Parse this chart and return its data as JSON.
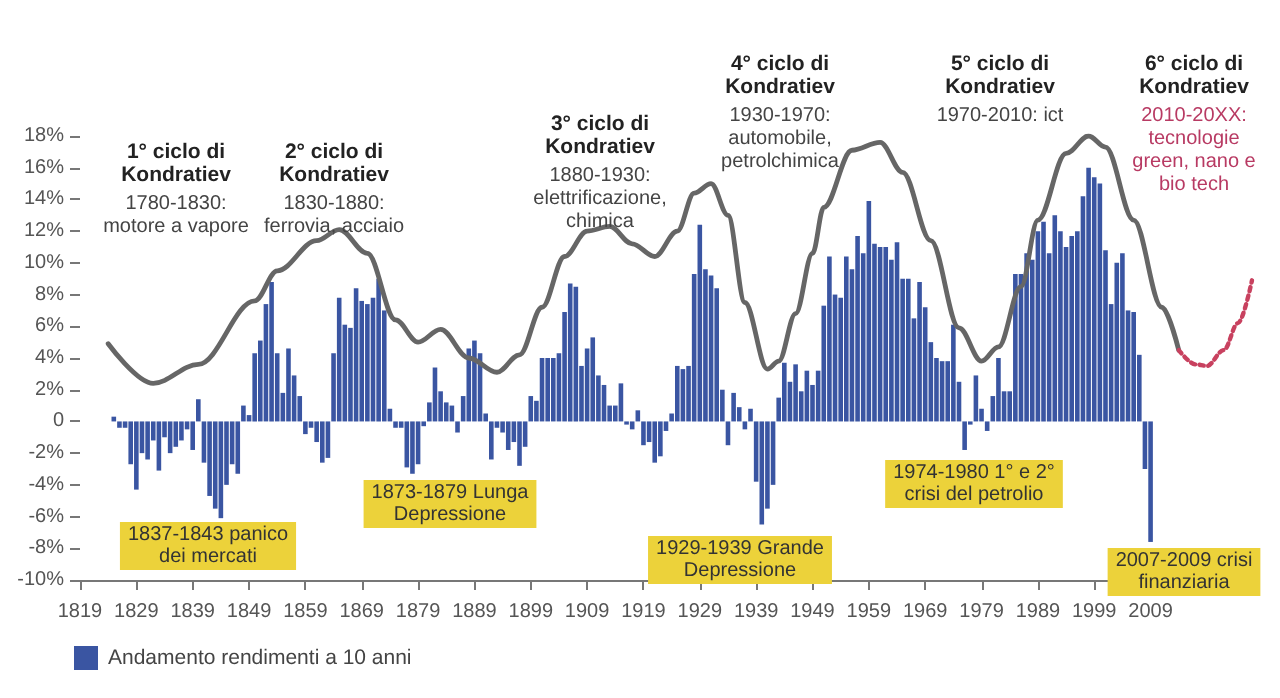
{
  "chart_data": {
    "type": "bar",
    "xlim": [
      1819,
      2027
    ],
    "xticks": [
      1819,
      1829,
      1839,
      1849,
      1859,
      1869,
      1879,
      1889,
      1899,
      1909,
      1919,
      1929,
      1939,
      1949,
      1959,
      1969,
      1979,
      1989,
      1999,
      2009
    ],
    "ylim": [
      -10,
      18
    ],
    "yticks": [
      {
        "value": -10,
        "label": "-10%"
      },
      {
        "value": -8,
        "label": "-8%"
      },
      {
        "value": -6,
        "label": "-6%"
      },
      {
        "value": -4,
        "label": "-4%"
      },
      {
        "value": -2,
        "label": "-2%"
      },
      0,
      {
        "value": 2,
        "label": "2%"
      },
      {
        "value": 4,
        "label": "4%"
      },
      {
        "value": 6,
        "label": "6%"
      },
      {
        "value": 8,
        "label": "8%"
      },
      {
        "value": 10,
        "label": "10%"
      },
      {
        "value": 12,
        "label": "12%"
      },
      {
        "value": 14,
        "label": "14%"
      },
      {
        "value": 16,
        "label": "16%"
      },
      {
        "value": 18,
        "label": "18%"
      }
    ],
    "legend": "bottom left",
    "marker": "none",
    "series": [
      {
        "name": "Andamento rendimenti a 10 anni",
        "color": "#3a55a2",
        "x": [
          1825,
          1826,
          1827,
          1828,
          1829,
          1830,
          1831,
          1832,
          1833,
          1834,
          1835,
          1836,
          1837,
          1838,
          1839,
          1840,
          1841,
          1842,
          1843,
          1844,
          1845,
          1846,
          1847,
          1848,
          1849,
          1850,
          1851,
          1852,
          1853,
          1854,
          1855,
          1856,
          1857,
          1858,
          1859,
          1860,
          1861,
          1862,
          1863,
          1864,
          1865,
          1866,
          1867,
          1868,
          1869,
          1870,
          1871,
          1872,
          1873,
          1874,
          1875,
          1876,
          1877,
          1878,
          1879,
          1880,
          1881,
          1882,
          1883,
          1884,
          1885,
          1886,
          1887,
          1888,
          1889,
          1890,
          1891,
          1892,
          1893,
          1894,
          1895,
          1896,
          1897,
          1898,
          1899,
          1900,
          1901,
          1902,
          1903,
          1904,
          1905,
          1906,
          1907,
          1908,
          1909,
          1910,
          1911,
          1912,
          1913,
          1914,
          1915,
          1916,
          1917,
          1918,
          1919,
          1920,
          1921,
          1922,
          1923,
          1924,
          1925,
          1926,
          1927,
          1928,
          1929,
          1930,
          1931,
          1932,
          1933,
          1934,
          1935,
          1936,
          1937,
          1938,
          1939,
          1940,
          1941,
          1942,
          1943,
          1944,
          1945,
          1946,
          1947,
          1948,
          1949,
          1950,
          1951,
          1952,
          1953,
          1954,
          1955,
          1956,
          1957,
          1958,
          1959,
          1960,
          1961,
          1962,
          1963,
          1964,
          1965,
          1966,
          1967,
          1968,
          1969,
          1970,
          1971,
          1972,
          1973,
          1974,
          1975,
          1976,
          1977,
          1978,
          1979,
          1980,
          1981,
          1982,
          1983,
          1984,
          1985,
          1986,
          1987,
          1988,
          1989,
          1990,
          1991,
          1992,
          1993,
          1994,
          1995,
          1996,
          1997,
          1998,
          1999,
          2000,
          2001,
          2002,
          2003,
          2004,
          2005,
          2006,
          2007,
          2008,
          2009
        ],
        "values": [
          0.3,
          -0.4,
          -0.4,
          -2.7,
          -4.3,
          -2.0,
          -2.4,
          -1.2,
          -3.1,
          -1.0,
          -2.0,
          -1.6,
          -1.2,
          -0.5,
          -1.8,
          1.4,
          -2.6,
          -4.7,
          -5.5,
          -6.1,
          -4.0,
          -2.7,
          -3.3,
          1.0,
          0.4,
          4.3,
          5.1,
          7.4,
          8.8,
          4.3,
          1.8,
          4.6,
          2.9,
          1.6,
          -0.8,
          -0.4,
          -1.3,
          -2.6,
          -2.3,
          4.3,
          7.8,
          6.1,
          5.9,
          8.4,
          7.6,
          7.4,
          7.8,
          9.0,
          7.0,
          0.8,
          -0.4,
          -0.4,
          -2.9,
          -3.3,
          -2.7,
          -0.3,
          1.2,
          3.4,
          1.9,
          1.2,
          1.0,
          -0.7,
          1.6,
          4.6,
          5.1,
          4.3,
          0.5,
          -2.4,
          -0.4,
          -0.7,
          -1.8,
          -1.3,
          -2.8,
          -1.6,
          1.6,
          1.3,
          4.0,
          4.0,
          4.0,
          4.3,
          6.9,
          8.7,
          8.5,
          3.5,
          4.6,
          5.3,
          2.9,
          2.3,
          1.0,
          1.0,
          2.4,
          -0.2,
          -0.5,
          0.7,
          -1.5,
          -1.3,
          -2.6,
          -2.2,
          -0.6,
          0.5,
          3.5,
          3.3,
          3.5,
          9.3,
          12.4,
          9.6,
          9.2,
          8.4,
          2.0,
          -1.5,
          1.8,
          0.9,
          -0.5,
          0.8,
          -3.8,
          -6.5,
          -5.5,
          -4.0,
          1.5,
          3.7,
          2.5,
          3.6,
          1.9,
          3.2,
          2.3,
          3.2,
          7.3,
          10.4,
          8.0,
          7.8,
          10.4,
          9.6,
          11.7,
          10.6,
          13.9,
          11.2,
          11.0,
          11.0,
          10.2,
          11.3,
          9.0,
          9.0,
          6.5,
          8.8,
          7.2,
          5.0,
          4.0,
          3.8,
          3.8,
          6.1,
          2.5,
          -1.8,
          -0.2,
          2.9,
          0.8,
          -0.6,
          1.6,
          4.0,
          1.9,
          1.9,
          9.3,
          9.3,
          10.6,
          10.2,
          12.0,
          12.6,
          10.6,
          13.0,
          12.0,
          11.0,
          11.7,
          12.0,
          14.2,
          16.0,
          15.4,
          15.0,
          10.8,
          7.4,
          10.0,
          10.6,
          7.0,
          6.9,
          4.2,
          -3.0,
          -7.6
        ]
      },
      {
        "type": "line",
        "color": "#666666",
        "line_style": "solid",
        "x": [
          1824,
          1832,
          1840,
          1850,
          1854,
          1861,
          1865,
          1870,
          1875,
          1879,
          1883,
          1888,
          1893,
          1897,
          1901,
          1905,
          1909,
          1913,
          1917,
          1921,
          1925,
          1928,
          1931,
          1934,
          1937,
          1941,
          1943,
          1946,
          1949,
          1951,
          1956,
          1961,
          1965,
          1970,
          1975,
          1979,
          1982,
          1986,
          1989,
          1994,
          1998,
          2001,
          2006,
          2011,
          2014
        ],
        "values": [
          4.9,
          2.4,
          3.6,
          7.6,
          9.5,
          11.4,
          12.1,
          10.6,
          6.4,
          5.0,
          5.8,
          4.0,
          3.1,
          4.2,
          7.2,
          10.4,
          12.0,
          12.3,
          11.2,
          10.4,
          12.0,
          14.4,
          15.0,
          13.0,
          7.5,
          3.3,
          3.8,
          6.8,
          10.6,
          13.5,
          17.1,
          17.6,
          15.7,
          11.4,
          5.9,
          3.8,
          4.7,
          8.5,
          12.7,
          16.9,
          18.0,
          17.3,
          12.7,
          7.2,
          4.5
        ]
      },
      {
        "type": "line",
        "color": "#c8415f",
        "line_style": "dotted",
        "x": [
          2014,
          2017,
          2019,
          2022,
          2024.5,
          2027
        ],
        "values": [
          4.5,
          3.6,
          3.5,
          4.5,
          6.2,
          8.9
        ]
      }
    ],
    "annotations": [
      "1° ciclo di\nKondratiev",
      "1780-1830:\nmotore a vapore",
      "2° ciclo di\nKondratiev",
      "1830-1880:\nferrovia, acciaio",
      "3° ciclo di\nKondratiev",
      "1880-1930:\nelettrificazione,\nchimica",
      "4° ciclo di\nKondratiev",
      "1930-1970:\nautomobile,\npetrolchimica",
      "5° ciclo di\nKondratiev",
      "1970-2010: ict",
      "6° ciclo di\nKondratiev",
      "2010-20XX:\ntecnologie\ngreen, nano e\nbio tech",
      "1837-1843 panico\ndei mercati",
      "1873-1879 Lunga\nDepressione",
      "1929-1939 Grande\nDepressione",
      "1974-1980 1° e 2°\ncrisi del petrolio",
      "2007-2009 crisi\nfinanziaria"
    ]
  }
}
